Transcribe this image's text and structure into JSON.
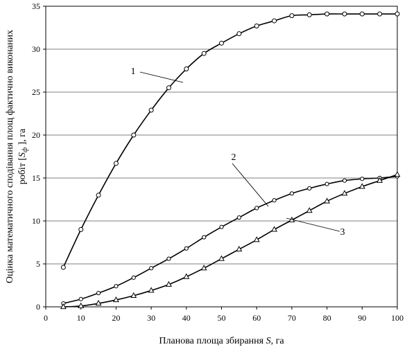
{
  "chart_data": {
    "type": "line",
    "xlabel_prefix": "Планова площа збирання ",
    "xlabel_var": "S",
    "xlabel_suffix": ", га",
    "ylabel_line1": "Оцінка математичного сподівання площ фактично виконаних",
    "ylabel_line2_prefix": "робіт [",
    "ylabel_line2_var": "S",
    "ylabel_line2_sub": "ф",
    "ylabel_line2_suffix": " ], га",
    "xlim": [
      0,
      100
    ],
    "ylim": [
      0,
      35
    ],
    "x_ticks": [
      0,
      10,
      20,
      30,
      40,
      50,
      60,
      70,
      80,
      90,
      100
    ],
    "y_ticks": [
      0,
      5,
      10,
      15,
      20,
      25,
      30,
      35
    ],
    "grid": "horizontal",
    "series": [
      {
        "label": "1",
        "marker": "circle",
        "x": [
          5,
          10,
          15,
          20,
          25,
          30,
          35,
          40,
          45,
          50,
          55,
          60,
          65,
          70,
          75,
          80,
          85,
          90,
          95,
          100
        ],
        "y": [
          4.6,
          9.0,
          13.0,
          16.7,
          20.0,
          22.9,
          25.5,
          27.7,
          29.5,
          30.7,
          31.8,
          32.7,
          33.3,
          33.9,
          34.0,
          34.1,
          34.1,
          34.1,
          34.1,
          34.1
        ]
      },
      {
        "label": "2",
        "marker": "diamond",
        "x": [
          5,
          10,
          15,
          20,
          25,
          30,
          35,
          40,
          45,
          50,
          55,
          60,
          65,
          70,
          75,
          80,
          85,
          90,
          95,
          100
        ],
        "y": [
          0.4,
          0.9,
          1.6,
          2.4,
          3.4,
          4.5,
          5.6,
          6.8,
          8.1,
          9.3,
          10.4,
          11.5,
          12.4,
          13.2,
          13.8,
          14.3,
          14.7,
          14.9,
          15.0,
          15.2
        ]
      },
      {
        "label": "3",
        "marker": "triangle",
        "x": [
          5,
          10,
          15,
          20,
          25,
          30,
          35,
          40,
          45,
          50,
          55,
          60,
          65,
          70,
          75,
          80,
          85,
          90,
          95,
          100
        ],
        "y": [
          0.0,
          0.1,
          0.4,
          0.8,
          1.3,
          1.9,
          2.6,
          3.5,
          4.5,
          5.6,
          6.7,
          7.8,
          9.0,
          10.1,
          11.2,
          12.3,
          13.2,
          14.0,
          14.7,
          15.4
        ]
      }
    ]
  }
}
